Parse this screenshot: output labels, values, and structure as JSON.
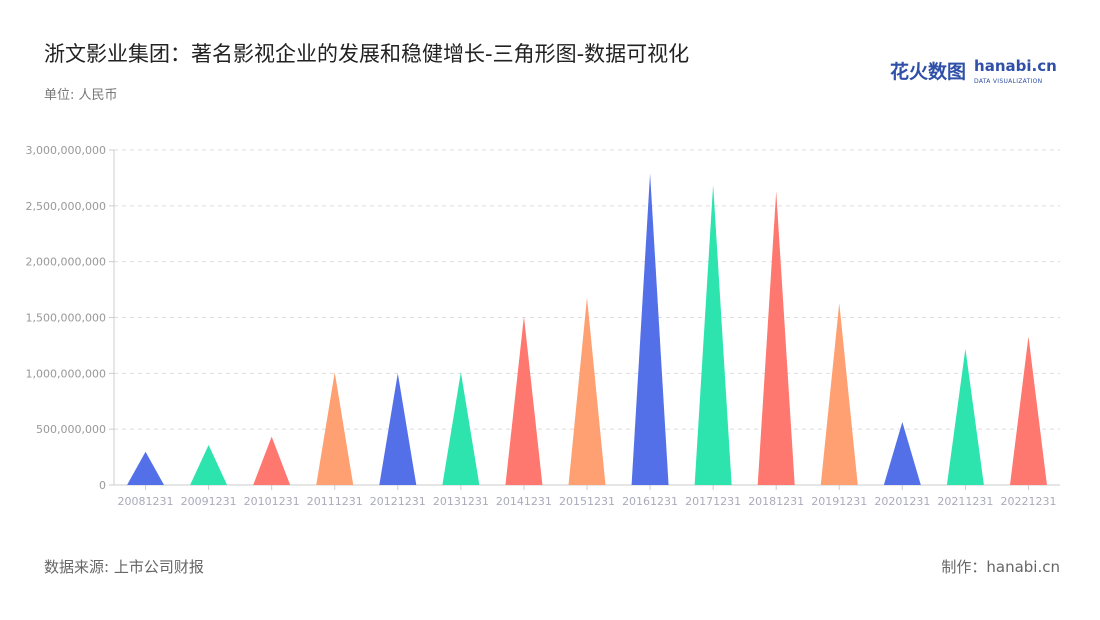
{
  "header": {
    "title": "浙文影业集团：著名影视企业的发展和稳健增长-三角形图-数据可视化",
    "unit": "单位: 人民币"
  },
  "logo": {
    "cn": "花火数图",
    "en": "hanabi.cn",
    "tagline": "DATA VISUALIZATION"
  },
  "footer": {
    "source": "数据来源: 上市公司财报",
    "maker": "制作：hanabi.cn"
  },
  "chart_data": {
    "type": "bar",
    "style": "triangle",
    "categories": [
      "20081231",
      "20091231",
      "20101231",
      "20111231",
      "20121231",
      "20131231",
      "20141231",
      "20151231",
      "20161231",
      "20171231",
      "20181231",
      "20191231",
      "20201231",
      "20211231",
      "20221231"
    ],
    "values": [
      298000000,
      358000000,
      433000000,
      1010000000,
      1000000000,
      1010000000,
      1510000000,
      1680000000,
      2790000000,
      2690000000,
      2630000000,
      1630000000,
      564000000,
      1220000000,
      1330000000
    ],
    "ylim": [
      0,
      3000000000
    ],
    "yticks": [
      "0",
      "500,000,000",
      "1,000,000,000",
      "1,500,000,000",
      "2,000,000,000",
      "2,500,000,000",
      "3,000,000,000"
    ],
    "grid": true,
    "colors": [
      "#5470e8",
      "#2de3ae",
      "#ff7870",
      "#ffa072"
    ]
  }
}
